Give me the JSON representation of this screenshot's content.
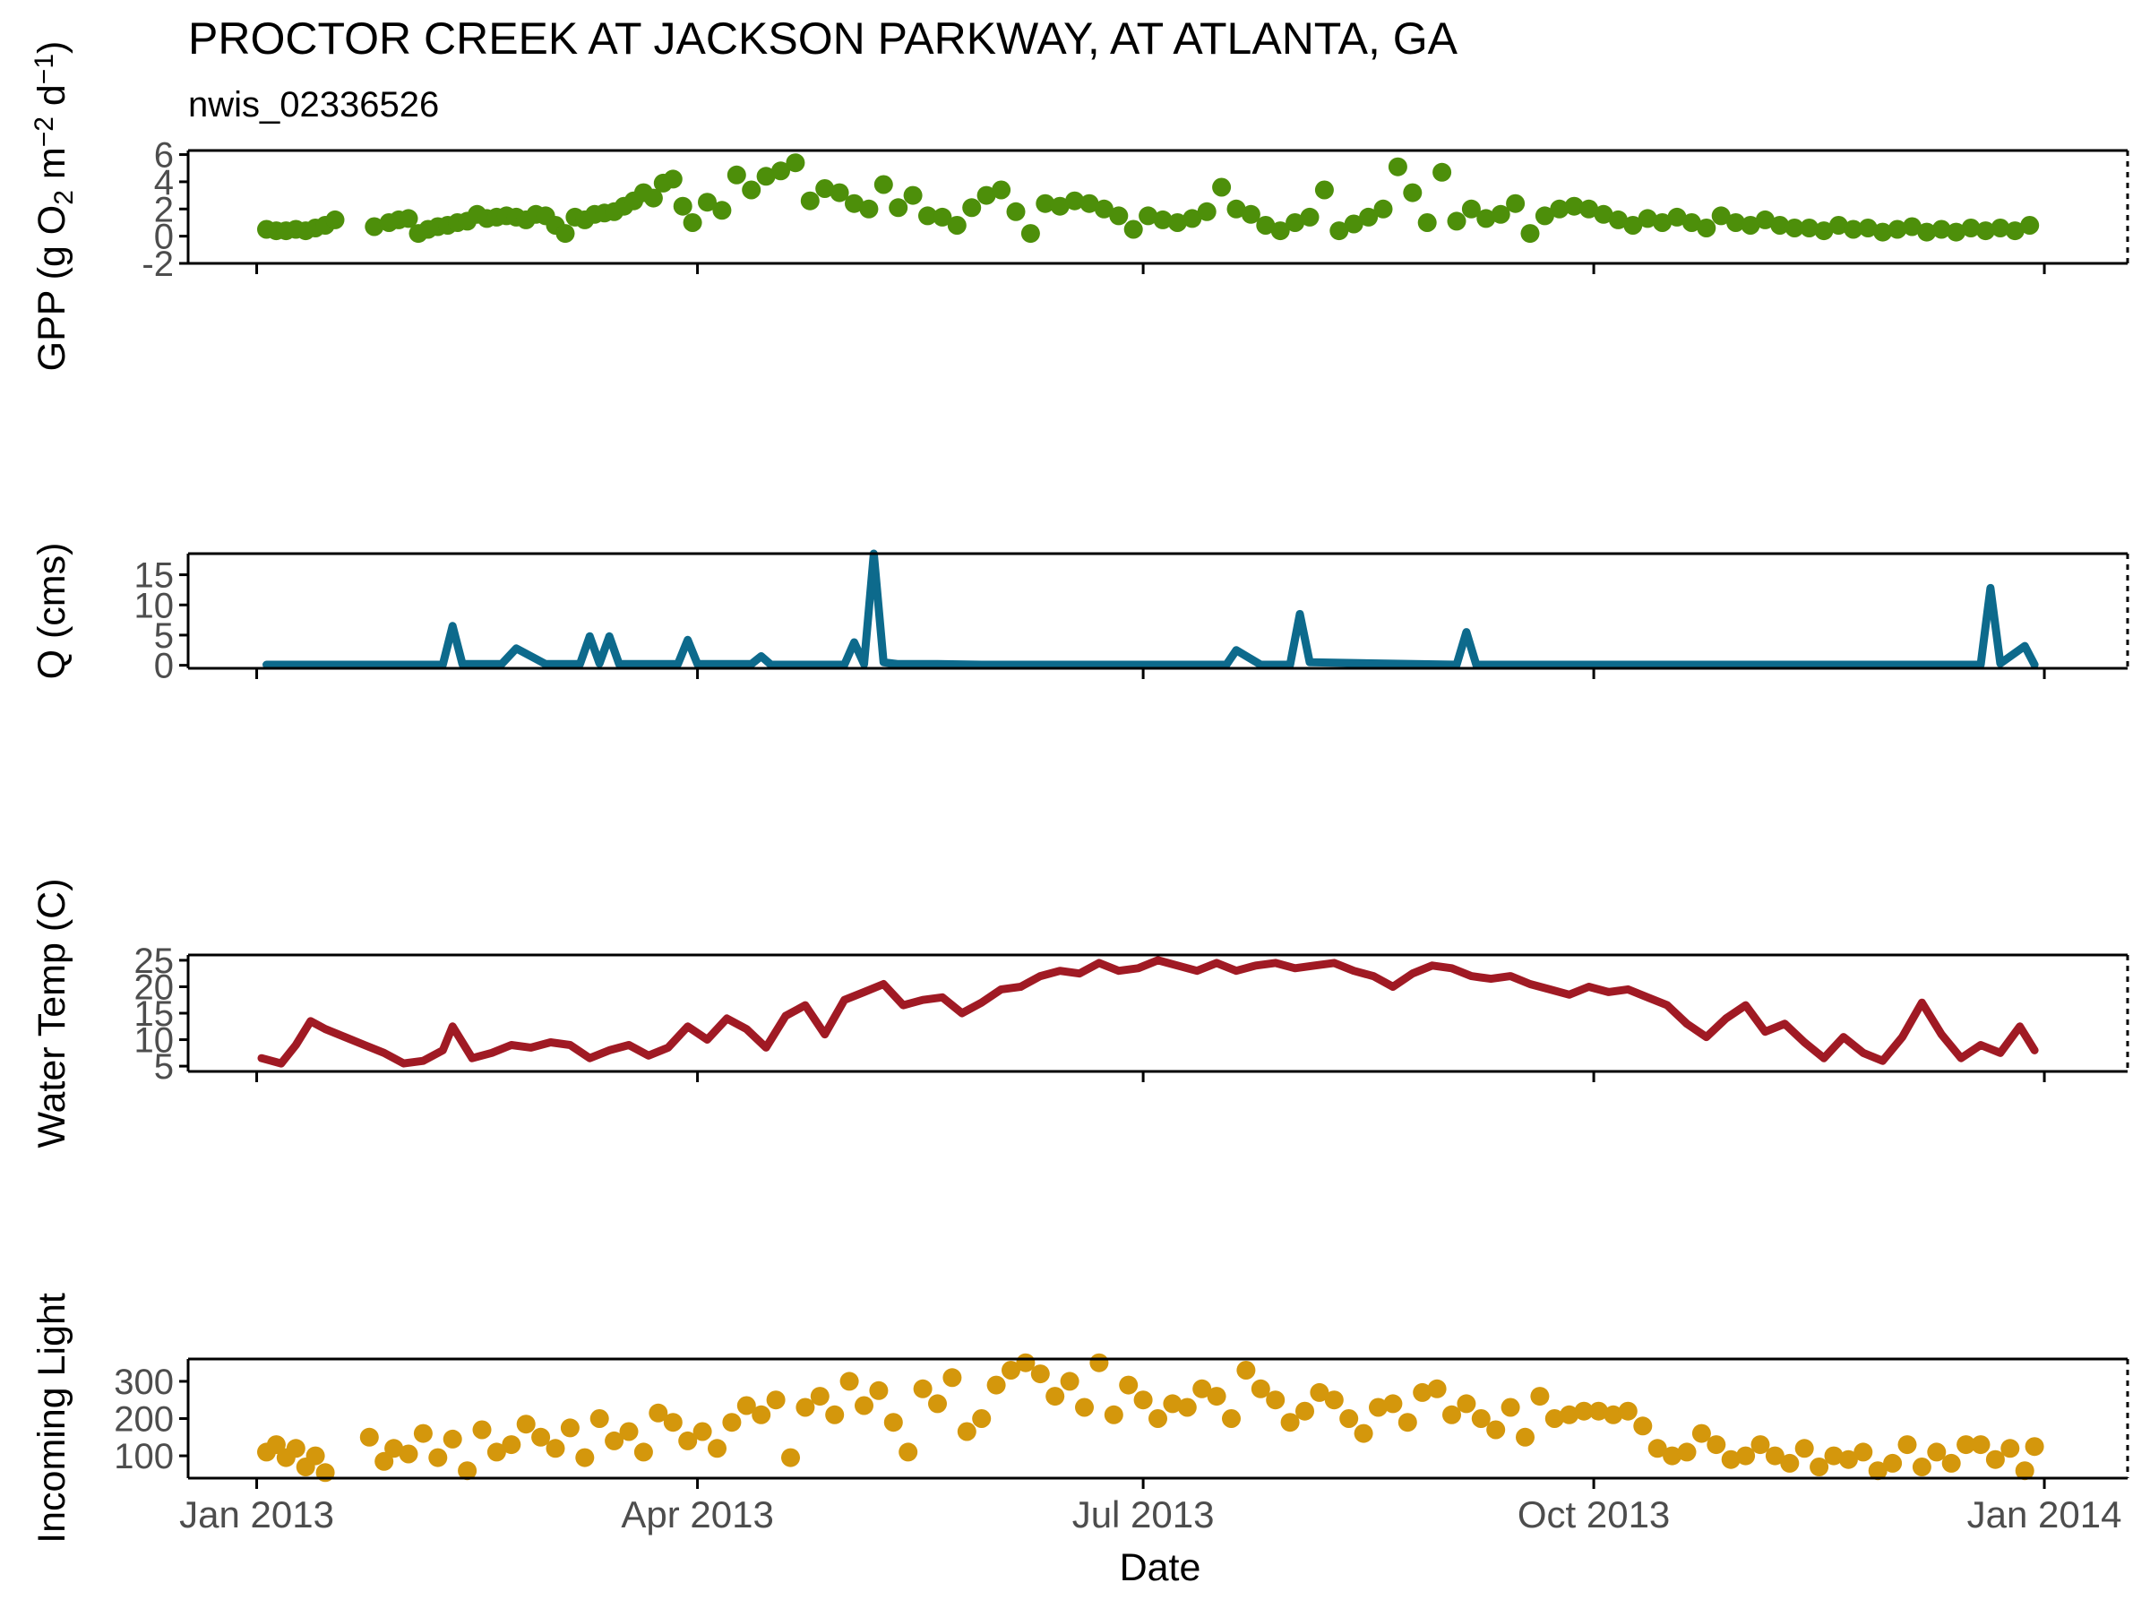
{
  "title": "PROCTOR CREEK AT JACKSON PARKWAY, AT ATLANTA, GA",
  "subtitle": "nwis_02336526",
  "xlabel": "Date",
  "x_ticks": [
    {
      "date": "2013-01-01",
      "label": "Jan 2013"
    },
    {
      "date": "2013-04-01",
      "label": "Apr 2013"
    },
    {
      "date": "2013-07-01",
      "label": "Jul 2013"
    },
    {
      "date": "2013-10-01",
      "label": "Oct 2013"
    },
    {
      "date": "2014-01-01",
      "label": "Jan 2014"
    }
  ],
  "chart_data": [
    {
      "type": "scatter",
      "ylabel_parts": [
        "GPP (g  O",
        "2",
        " m",
        "−2",
        " d",
        "−1",
        ")"
      ],
      "xlim": [
        "2012-12-18",
        "2014-01-18"
      ],
      "ylim": [
        -2,
        6.3
      ],
      "y_ticks": [
        -2,
        0,
        2,
        4,
        6
      ],
      "grid": false,
      "color": "#4d8f0a",
      "series": [
        {
          "x": [
            "2013-01-03",
            "2013-01-05",
            "2013-01-07",
            "2013-01-09",
            "2013-01-11",
            "2013-01-13",
            "2013-01-15",
            "2013-01-17",
            "2013-01-25",
            "2013-01-28",
            "2013-01-30",
            "2013-02-01",
            "2013-02-03",
            "2013-02-05",
            "2013-02-07",
            "2013-02-09",
            "2013-02-11",
            "2013-02-13",
            "2013-02-15",
            "2013-02-17",
            "2013-02-19",
            "2013-02-21",
            "2013-02-23",
            "2013-02-25",
            "2013-02-27",
            "2013-03-01",
            "2013-03-03",
            "2013-03-05",
            "2013-03-07",
            "2013-03-09",
            "2013-03-11",
            "2013-03-13",
            "2013-03-15",
            "2013-03-17",
            "2013-03-19",
            "2013-03-21",
            "2013-03-23",
            "2013-03-25",
            "2013-03-27",
            "2013-03-29",
            "2013-03-31",
            "2013-04-03",
            "2013-04-06",
            "2013-04-09",
            "2013-04-12",
            "2013-04-15",
            "2013-04-18",
            "2013-04-21",
            "2013-04-24",
            "2013-04-27",
            "2013-04-30",
            "2013-05-03",
            "2013-05-06",
            "2013-05-09",
            "2013-05-12",
            "2013-05-15",
            "2013-05-18",
            "2013-05-21",
            "2013-05-24",
            "2013-05-27",
            "2013-05-30",
            "2013-06-02",
            "2013-06-05",
            "2013-06-08",
            "2013-06-11",
            "2013-06-14",
            "2013-06-17",
            "2013-06-20",
            "2013-06-23",
            "2013-06-26",
            "2013-06-29",
            "2013-07-02",
            "2013-07-05",
            "2013-07-08",
            "2013-07-11",
            "2013-07-14",
            "2013-07-17",
            "2013-07-20",
            "2013-07-23",
            "2013-07-26",
            "2013-07-29",
            "2013-08-01",
            "2013-08-04",
            "2013-08-07",
            "2013-08-10",
            "2013-08-13",
            "2013-08-16",
            "2013-08-19",
            "2013-08-22",
            "2013-08-25",
            "2013-08-28",
            "2013-08-31",
            "2013-09-03",
            "2013-09-06",
            "2013-09-09",
            "2013-09-12",
            "2013-09-15",
            "2013-09-18",
            "2013-09-21",
            "2013-09-24",
            "2013-09-27",
            "2013-09-30",
            "2013-10-03",
            "2013-10-06",
            "2013-10-09",
            "2013-10-12",
            "2013-10-15",
            "2013-10-18",
            "2013-10-21",
            "2013-10-24",
            "2013-10-27",
            "2013-10-30",
            "2013-11-02",
            "2013-11-05",
            "2013-11-08",
            "2013-11-11",
            "2013-11-14",
            "2013-11-17",
            "2013-11-20",
            "2013-11-23",
            "2013-11-26",
            "2013-11-29",
            "2013-12-02",
            "2013-12-05",
            "2013-12-08",
            "2013-12-11",
            "2013-12-14",
            "2013-12-17",
            "2013-12-20",
            "2013-12-23",
            "2013-12-26",
            "2013-12-29"
          ],
          "y": [
            0.5,
            0.4,
            0.4,
            0.5,
            0.4,
            0.6,
            0.8,
            1.2,
            0.7,
            1.0,
            1.2,
            1.3,
            0.2,
            0.5,
            0.7,
            0.8,
            1.0,
            1.1,
            1.6,
            1.3,
            1.4,
            1.5,
            1.4,
            1.2,
            1.6,
            1.5,
            0.8,
            0.2,
            1.4,
            1.2,
            1.6,
            1.7,
            1.8,
            2.2,
            2.6,
            3.2,
            2.8,
            3.9,
            4.2,
            2.2,
            1.0,
            2.5,
            1.9,
            4.5,
            3.4,
            4.4,
            4.8,
            5.4,
            2.6,
            3.5,
            3.2,
            2.4,
            2.0,
            3.8,
            2.1,
            3.0,
            1.5,
            1.4,
            0.8,
            2.1,
            3.0,
            3.4,
            1.8,
            0.2,
            2.4,
            2.2,
            2.6,
            2.4,
            2.0,
            1.5,
            0.5,
            1.5,
            1.2,
            1.0,
            1.3,
            1.8,
            3.6,
            2.0,
            1.6,
            0.8,
            0.4,
            1.0,
            1.4,
            3.4,
            0.4,
            0.9,
            1.4,
            2.0,
            5.1,
            3.2,
            1.0,
            4.7,
            1.1,
            2.0,
            1.3,
            1.6,
            2.4,
            0.2,
            1.5,
            2.0,
            2.2,
            2.0,
            1.6,
            1.2,
            0.8,
            1.3,
            1.0,
            1.4,
            1.0,
            0.6,
            1.5,
            1.0,
            0.8,
            1.2,
            0.8,
            0.6,
            0.6,
            0.4,
            0.8,
            0.5,
            0.6,
            0.3,
            0.5,
            0.7,
            0.3,
            0.5,
            0.3,
            0.6,
            0.4,
            0.6,
            0.4,
            0.8
          ]
        }
      ]
    },
    {
      "type": "line",
      "ylabel_parts": [
        "Q (cms)"
      ],
      "xlim": [
        "2012-12-18",
        "2014-01-18"
      ],
      "ylim": [
        -0.5,
        18.5
      ],
      "y_ticks": [
        0,
        5,
        10,
        15
      ],
      "grid": false,
      "color": "#0d6a8c",
      "series": [
        {
          "x": [
            "2013-01-03",
            "2013-02-08",
            "2013-02-10",
            "2013-02-12",
            "2013-02-20",
            "2013-02-23",
            "2013-03-01",
            "2013-03-08",
            "2013-03-10",
            "2013-03-12",
            "2013-03-14",
            "2013-03-16",
            "2013-03-28",
            "2013-03-30",
            "2013-04-01",
            "2013-04-12",
            "2013-04-14",
            "2013-04-16",
            "2013-05-01",
            "2013-05-03",
            "2013-05-05",
            "2013-05-07",
            "2013-05-09",
            "2013-05-12",
            "2013-05-20",
            "2013-05-29",
            "2013-07-18",
            "2013-07-20",
            "2013-07-25",
            "2013-07-31",
            "2013-08-02",
            "2013-08-04",
            "2013-09-03",
            "2013-09-05",
            "2013-09-07",
            "2013-12-19",
            "2013-12-21",
            "2013-12-23",
            "2013-12-28",
            "2013-12-30"
          ],
          "y": [
            0.1,
            0.1,
            6.5,
            0.2,
            0.2,
            2.8,
            0.2,
            0.2,
            4.8,
            0.3,
            4.8,
            0.2,
            0.2,
            4.2,
            0.2,
            0.2,
            1.5,
            0.1,
            0.1,
            3.8,
            0.2,
            18.5,
            0.5,
            0.2,
            0.2,
            0.1,
            0.1,
            2.5,
            0.1,
            0.1,
            8.5,
            0.5,
            0.1,
            5.5,
            0.1,
            0.1,
            12.8,
            0.3,
            3.2,
            0.1
          ]
        }
      ]
    },
    {
      "type": "line",
      "ylabel_parts": [
        "Water Temp (C)"
      ],
      "xlim": [
        "2012-12-18",
        "2014-01-18"
      ],
      "ylim": [
        4,
        26
      ],
      "y_ticks": [
        5,
        10,
        15,
        20,
        25
      ],
      "grid": false,
      "color": "#a01a24",
      "series": [
        {
          "x": [
            "2013-01-02",
            "2013-01-06",
            "2013-01-09",
            "2013-01-12",
            "2013-01-15",
            "2013-01-19",
            "2013-01-23",
            "2013-01-27",
            "2013-01-31",
            "2013-02-04",
            "2013-02-08",
            "2013-02-10",
            "2013-02-14",
            "2013-02-18",
            "2013-02-22",
            "2013-02-26",
            "2013-03-02",
            "2013-03-06",
            "2013-03-10",
            "2013-03-14",
            "2013-03-18",
            "2013-03-22",
            "2013-03-26",
            "2013-03-30",
            "2013-04-03",
            "2013-04-07",
            "2013-04-11",
            "2013-04-15",
            "2013-04-19",
            "2013-04-23",
            "2013-04-27",
            "2013-05-01",
            "2013-05-05",
            "2013-05-09",
            "2013-05-13",
            "2013-05-17",
            "2013-05-21",
            "2013-05-25",
            "2013-05-29",
            "2013-06-02",
            "2013-06-06",
            "2013-06-10",
            "2013-06-14",
            "2013-06-18",
            "2013-06-22",
            "2013-06-26",
            "2013-06-30",
            "2013-07-04",
            "2013-07-08",
            "2013-07-12",
            "2013-07-16",
            "2013-07-20",
            "2013-07-24",
            "2013-07-28",
            "2013-08-01",
            "2013-08-05",
            "2013-08-09",
            "2013-08-13",
            "2013-08-17",
            "2013-08-21",
            "2013-08-25",
            "2013-08-29",
            "2013-09-02",
            "2013-09-06",
            "2013-09-10",
            "2013-09-14",
            "2013-09-18",
            "2013-09-22",
            "2013-09-26",
            "2013-09-30",
            "2013-10-04",
            "2013-10-08",
            "2013-10-12",
            "2013-10-16",
            "2013-10-20",
            "2013-10-24",
            "2013-10-28",
            "2013-11-01",
            "2013-11-05",
            "2013-11-09",
            "2013-11-13",
            "2013-11-17",
            "2013-11-21",
            "2013-11-25",
            "2013-11-29",
            "2013-12-03",
            "2013-12-07",
            "2013-12-11",
            "2013-12-15",
            "2013-12-19",
            "2013-12-23",
            "2013-12-27",
            "2013-12-30"
          ],
          "y": [
            6.5,
            5.5,
            9.0,
            13.5,
            12.0,
            10.5,
            9.0,
            7.5,
            5.5,
            6.0,
            8.0,
            12.5,
            6.5,
            7.5,
            9.0,
            8.5,
            9.5,
            9.0,
            6.5,
            8.0,
            9.0,
            7.0,
            8.5,
            12.5,
            10.0,
            14.0,
            12.0,
            8.5,
            14.5,
            16.5,
            11.0,
            17.5,
            19.0,
            20.5,
            16.5,
            17.5,
            18.0,
            15.0,
            17.0,
            19.5,
            20.0,
            22.0,
            23.0,
            22.5,
            24.5,
            23.0,
            23.5,
            25.0,
            24.0,
            23.0,
            24.5,
            23.0,
            24.0,
            24.5,
            23.5,
            24.0,
            24.5,
            23.0,
            22.0,
            20.0,
            22.5,
            24.0,
            23.5,
            22.0,
            21.5,
            22.0,
            20.5,
            19.5,
            18.5,
            20.0,
            19.0,
            19.5,
            18.0,
            16.5,
            13.0,
            10.5,
            14.0,
            16.5,
            11.5,
            13.0,
            9.5,
            6.5,
            10.5,
            7.5,
            6.0,
            10.5,
            17.0,
            11.0,
            6.5,
            9.0,
            7.5,
            12.5,
            8.0
          ]
        }
      ]
    },
    {
      "type": "scatter",
      "ylabel_parts": [
        "Incoming Light"
      ],
      "xlim": [
        "2012-12-18",
        "2014-01-18"
      ],
      "ylim": [
        40,
        360
      ],
      "y_ticks": [
        100,
        200,
        300
      ],
      "grid": false,
      "color": "#d4970c",
      "series": [
        {
          "x": [
            "2013-01-03",
            "2013-01-05",
            "2013-01-07",
            "2013-01-09",
            "2013-01-11",
            "2013-01-13",
            "2013-01-15",
            "2013-01-24",
            "2013-01-27",
            "2013-01-29",
            "2013-02-01",
            "2013-02-04",
            "2013-02-07",
            "2013-02-10",
            "2013-02-13",
            "2013-02-16",
            "2013-02-19",
            "2013-02-22",
            "2013-02-25",
            "2013-02-28",
            "2013-03-03",
            "2013-03-06",
            "2013-03-09",
            "2013-03-12",
            "2013-03-15",
            "2013-03-18",
            "2013-03-21",
            "2013-03-24",
            "2013-03-27",
            "2013-03-30",
            "2013-04-02",
            "2013-04-05",
            "2013-04-08",
            "2013-04-11",
            "2013-04-14",
            "2013-04-17",
            "2013-04-20",
            "2013-04-23",
            "2013-04-26",
            "2013-04-29",
            "2013-05-02",
            "2013-05-05",
            "2013-05-08",
            "2013-05-11",
            "2013-05-14",
            "2013-05-17",
            "2013-05-20",
            "2013-05-23",
            "2013-05-26",
            "2013-05-29",
            "2013-06-01",
            "2013-06-04",
            "2013-06-07",
            "2013-06-10",
            "2013-06-13",
            "2013-06-16",
            "2013-06-19",
            "2013-06-22",
            "2013-06-25",
            "2013-06-28",
            "2013-07-01",
            "2013-07-04",
            "2013-07-07",
            "2013-07-10",
            "2013-07-13",
            "2013-07-16",
            "2013-07-19",
            "2013-07-22",
            "2013-07-25",
            "2013-07-28",
            "2013-07-31",
            "2013-08-03",
            "2013-08-06",
            "2013-08-09",
            "2013-08-12",
            "2013-08-15",
            "2013-08-18",
            "2013-08-21",
            "2013-08-24",
            "2013-08-27",
            "2013-08-30",
            "2013-09-02",
            "2013-09-05",
            "2013-09-08",
            "2013-09-11",
            "2013-09-14",
            "2013-09-17",
            "2013-09-20",
            "2013-09-23",
            "2013-09-26",
            "2013-09-29",
            "2013-10-02",
            "2013-10-05",
            "2013-10-08",
            "2013-10-11",
            "2013-10-14",
            "2013-10-17",
            "2013-10-20",
            "2013-10-23",
            "2013-10-26",
            "2013-10-29",
            "2013-11-01",
            "2013-11-04",
            "2013-11-07",
            "2013-11-10",
            "2013-11-13",
            "2013-11-16",
            "2013-11-19",
            "2013-11-22",
            "2013-11-25",
            "2013-11-28",
            "2013-12-01",
            "2013-12-04",
            "2013-12-07",
            "2013-12-10",
            "2013-12-13",
            "2013-12-16",
            "2013-12-19",
            "2013-12-22",
            "2013-12-25",
            "2013-12-28",
            "2013-12-30"
          ],
          "y": [
            110,
            130,
            95,
            120,
            70,
            100,
            55,
            150,
            85,
            120,
            105,
            160,
            95,
            145,
            60,
            170,
            110,
            130,
            185,
            150,
            120,
            175,
            95,
            200,
            140,
            165,
            110,
            215,
            190,
            140,
            165,
            120,
            190,
            235,
            210,
            250,
            95,
            230,
            260,
            210,
            300,
            235,
            275,
            190,
            110,
            280,
            240,
            310,
            165,
            200,
            290,
            330,
            350,
            320,
            260,
            300,
            230,
            350,
            210,
            290,
            250,
            200,
            240,
            230,
            280,
            260,
            200,
            330,
            280,
            250,
            190,
            220,
            270,
            250,
            200,
            160,
            230,
            240,
            190,
            270,
            280,
            210,
            240,
            200,
            170,
            230,
            150,
            260,
            200,
            210,
            220,
            220,
            210,
            220,
            180,
            120,
            100,
            110,
            160,
            130,
            90,
            100,
            130,
            100,
            80,
            120,
            70,
            100,
            90,
            110,
            60,
            80,
            130,
            70,
            110,
            80,
            130,
            130,
            90,
            120,
            60,
            125
          ]
        }
      ]
    }
  ]
}
